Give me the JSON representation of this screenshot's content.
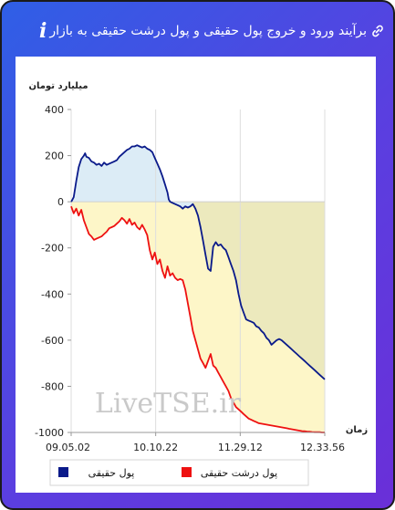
{
  "header": {
    "title": "برآیند ورود و خروج پول حقیقی و پول درشت حقیقی به بازار",
    "info_glyph": "i",
    "link_icon": "link-icon"
  },
  "chart_data": {
    "type": "line",
    "ylabel": "میلیارد تومان",
    "xlabel": "زمان",
    "ylim": [
      -1000,
      400
    ],
    "yticks": [
      400,
      200,
      0,
      -200,
      -400,
      -600,
      -800,
      -1000
    ],
    "xticks": [
      "09.05.02",
      "10.10.22",
      "11.29.12",
      "12.33.56"
    ],
    "watermark": "LiveTSE.ir",
    "grid": "vertical",
    "legend_position": "bottom",
    "series": [
      {
        "name": "پول حقیقی",
        "color": "#0a1a8a",
        "fill": "#dcecf6",
        "x": [
          0,
          0.3,
          1,
          2,
          3,
          4,
          5,
          5.5,
          6,
          7,
          8,
          9,
          10,
          11,
          12,
          13,
          14,
          15,
          16,
          17,
          18,
          19,
          20,
          21,
          22,
          23,
          24,
          25,
          26,
          27,
          28,
          29,
          30,
          31,
          32,
          33,
          34,
          35,
          36,
          37,
          38,
          38.5,
          39,
          40,
          41,
          42,
          43,
          44,
          45,
          46,
          47,
          48,
          49,
          50,
          51,
          52,
          53,
          54,
          55,
          56,
          57,
          58,
          59,
          60,
          61,
          62,
          63,
          64,
          65,
          66,
          67,
          68,
          69,
          70,
          71,
          72,
          73,
          74,
          75,
          76,
          77,
          78,
          79,
          80,
          81,
          82,
          83,
          84,
          85,
          86,
          87,
          88,
          89,
          90,
          91,
          92,
          93,
          94,
          95,
          96,
          97,
          98,
          99,
          100
        ],
        "values": [
          0,
          5,
          20,
          90,
          150,
          185,
          200,
          210,
          195,
          190,
          175,
          170,
          160,
          165,
          155,
          170,
          160,
          165,
          170,
          175,
          180,
          195,
          205,
          215,
          225,
          230,
          240,
          240,
          245,
          240,
          235,
          240,
          230,
          225,
          215,
          190,
          165,
          140,
          110,
          75,
          40,
          10,
          0,
          -5,
          -10,
          -15,
          -20,
          -30,
          -20,
          -25,
          -20,
          -10,
          -30,
          -60,
          -110,
          -170,
          -230,
          -290,
          -300,
          -195,
          -175,
          -190,
          -185,
          -200,
          -210,
          -240,
          -270,
          -300,
          -340,
          -400,
          -450,
          -480,
          -510,
          -515,
          -520,
          -525,
          -540,
          -545,
          -560,
          -570,
          -590,
          -600,
          -620,
          -610,
          -600,
          -595,
          -600,
          -610,
          -620,
          -630,
          -640,
          -650,
          -660,
          -670,
          -680,
          -690,
          -700,
          -710,
          -720,
          -730,
          -740,
          -750,
          -760,
          -770
        ]
      },
      {
        "name": "پول درشت حقیقی",
        "color": "#ee1111",
        "fill": "#fdf6c8",
        "x": [
          0,
          1,
          2,
          3,
          4,
          5,
          6,
          7,
          8,
          9,
          10,
          11,
          12,
          13,
          14,
          15,
          16,
          17,
          18,
          19,
          20,
          21,
          22,
          23,
          24,
          25,
          26,
          27,
          28,
          29,
          30,
          31,
          32,
          33,
          34,
          35,
          36,
          37,
          38,
          39,
          40,
          41,
          42,
          43,
          44,
          45,
          46,
          47,
          48,
          49,
          50,
          51,
          52,
          53,
          54,
          55,
          56,
          57,
          58,
          59,
          60,
          61,
          62,
          63,
          64,
          65,
          66,
          67,
          68,
          69,
          70,
          71,
          72,
          73,
          74,
          75,
          76,
          77,
          78,
          79,
          80,
          81,
          82,
          83,
          84,
          85,
          86,
          87,
          88,
          89,
          90,
          91,
          92,
          93,
          94,
          95,
          96,
          97,
          98,
          99,
          100
        ],
        "values": [
          -20,
          -50,
          -30,
          -60,
          -35,
          -80,
          -110,
          -140,
          -150,
          -165,
          -160,
          -155,
          -150,
          -140,
          -130,
          -115,
          -110,
          -105,
          -95,
          -85,
          -70,
          -80,
          -95,
          -75,
          -100,
          -90,
          -110,
          -120,
          -100,
          -120,
          -145,
          -210,
          -250,
          -220,
          -270,
          -250,
          -300,
          -330,
          -280,
          -320,
          -310,
          -330,
          -340,
          -335,
          -340,
          -380,
          -440,
          -500,
          -560,
          -600,
          -640,
          -680,
          -700,
          -720,
          -690,
          -660,
          -710,
          -720,
          -740,
          -760,
          -780,
          -800,
          -820,
          -850,
          -870,
          -890,
          -900,
          -910,
          -920,
          -930,
          -940,
          -945,
          -950,
          -955,
          -960,
          -962,
          -964,
          -966,
          -968,
          -970,
          -972,
          -974,
          -976,
          -978,
          -980,
          -982,
          -984,
          -986,
          -988,
          -990,
          -992,
          -994,
          -995,
          -996,
          -997,
          -998,
          -999,
          -999,
          -999,
          -1000,
          -1000
        ]
      }
    ]
  },
  "legend": {
    "real_money_label": "پول حقیقی",
    "big_real_money_label": "پول درشت حقیقی"
  }
}
